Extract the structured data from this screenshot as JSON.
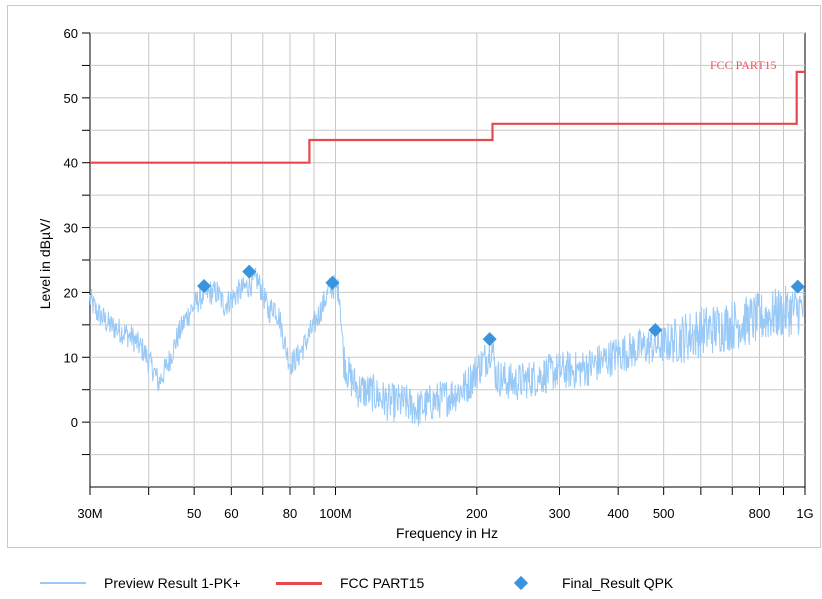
{
  "colors": {
    "preview": "#99c9f7",
    "limit": "#e8474c",
    "final": "#3a93dd",
    "grid": "#c8c8c8"
  },
  "legend": {
    "preview_label": "Preview Result 1-PK+",
    "limit_label": "FCC PART15",
    "final_label": "Final_Result QPK"
  },
  "chart_data": {
    "type": "line",
    "title": "",
    "xlabel": "Frequency in Hz",
    "ylabel": "Level in dBµV/",
    "x_scale": "log",
    "xlim": [
      30000000,
      1000000000
    ],
    "ylim": [
      -10,
      60
    ],
    "grid": true,
    "x_ticks": [
      {
        "value": 30000000,
        "label": "30M"
      },
      {
        "value": 50000000,
        "label": "50"
      },
      {
        "value": 60000000,
        "label": "60"
      },
      {
        "value": 80000000,
        "label": "80"
      },
      {
        "value": 100000000,
        "label": "100M"
      },
      {
        "value": 200000000,
        "label": "200"
      },
      {
        "value": 300000000,
        "label": "300"
      },
      {
        "value": 400000000,
        "label": "400"
      },
      {
        "value": 500000000,
        "label": "500"
      },
      {
        "value": 800000000,
        "label": "800"
      },
      {
        "value": 1000000000,
        "label": "1G"
      }
    ],
    "x_minor_ticks": [
      40000000,
      70000000,
      90000000,
      600000000,
      700000000,
      900000000
    ],
    "y_ticks": [
      {
        "value": 0,
        "label": "0"
      },
      {
        "value": 10,
        "label": "10"
      },
      {
        "value": 20,
        "label": "20"
      },
      {
        "value": 30,
        "label": "30"
      },
      {
        "value": 40,
        "label": "40"
      },
      {
        "value": 50,
        "label": "50"
      },
      {
        "value": 60,
        "label": "60"
      }
    ],
    "y_minor_ticks": [
      -5,
      5,
      15,
      25,
      35,
      45,
      55
    ],
    "limit_annotation": "FCC PART15",
    "series": [
      {
        "name": "Preview Result 1-PK+",
        "kind": "noisy-line",
        "x": [
          30000000,
          31000000,
          33000000,
          35000000,
          37000000,
          39000000,
          41000000,
          42000000,
          44000000,
          46000000,
          48000000,
          50000000,
          52000000,
          54000000,
          56000000,
          58000000,
          60000000,
          62000000,
          65000000,
          68000000,
          70000000,
          72000000,
          74000000,
          76000000,
          78000000,
          80000000,
          83000000,
          86000000,
          90000000,
          94000000,
          97000000,
          100000000,
          102000000,
          104000000,
          107000000,
          112000000,
          120000000,
          130000000,
          140000000,
          150000000,
          160000000,
          175000000,
          190000000,
          200000000,
          210000000,
          215000000,
          220000000,
          240000000,
          270000000,
          300000000,
          330000000,
          360000000,
          400000000,
          450000000,
          500000000,
          550000000,
          600000000,
          700000000,
          800000000,
          900000000,
          1000000000
        ],
        "values": [
          19,
          17,
          15,
          14,
          13,
          11,
          8,
          6,
          9,
          13,
          16,
          18,
          19.5,
          20,
          20,
          18,
          19,
          20,
          21,
          22,
          20,
          17,
          18,
          16,
          12,
          9,
          10,
          12,
          15,
          18,
          20.5,
          21,
          20,
          10,
          7,
          5,
          4.5,
          3,
          3,
          2,
          3,
          4,
          5.5,
          8,
          10,
          12,
          7,
          6,
          7,
          8,
          8,
          9,
          10.5,
          11.5,
          12,
          13,
          14,
          15,
          16,
          17,
          17.5
        ],
        "noise": [
          2,
          2,
          2,
          2,
          2,
          2,
          2,
          2,
          2,
          2,
          2,
          2,
          2,
          2,
          2,
          2,
          2,
          2,
          2,
          2,
          2,
          2,
          2,
          2,
          2,
          2,
          2,
          2,
          2,
          2,
          2,
          2,
          2,
          3,
          3,
          3,
          3,
          3,
          3,
          3,
          3,
          3,
          3,
          3,
          3,
          3,
          3,
          3,
          3,
          3,
          3,
          3,
          3,
          3,
          3,
          4,
          4,
          4,
          4,
          4,
          4
        ]
      },
      {
        "name": "FCC PART15",
        "kind": "step",
        "x": [
          30000000,
          88000000,
          88000000,
          216000000,
          216000000,
          960000000,
          960000000,
          1000000000
        ],
        "values": [
          40,
          40,
          43.5,
          43.5,
          46,
          46,
          54,
          54
        ]
      },
      {
        "name": "Final_Result QPK",
        "kind": "points",
        "x": [
          52500000,
          65500000,
          98500000,
          213000000,
          480000000,
          965000000
        ],
        "values": [
          21,
          23.2,
          21.5,
          12.8,
          14.2,
          20.9
        ]
      }
    ]
  }
}
